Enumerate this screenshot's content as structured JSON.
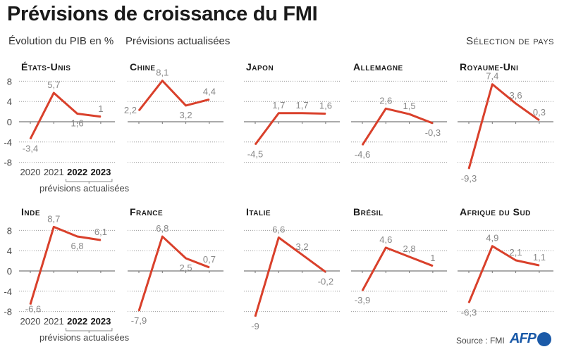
{
  "header": {
    "title": "Prévisions de croissance du FMI",
    "subtitle_left": "Évolution du PIB en %",
    "subtitle_middle": "Prévisions actualisées",
    "selection": "Sélection de pays"
  },
  "footer": {
    "source": "Source : FMI",
    "logo": "AFP"
  },
  "colors": {
    "line": "#d9402b",
    "grid": "#999999",
    "label": "#888888"
  },
  "chart_data": {
    "type": "line",
    "x": [
      "2020",
      "2021",
      "2022",
      "2023"
    ],
    "x_note": "prévisions actualisées",
    "yticks": [
      "8",
      "4",
      "0",
      "-4",
      "-8"
    ],
    "ylim": [
      -8,
      8
    ],
    "grid": true,
    "series": [
      {
        "name": "États-Unis",
        "values": [
          -3.4,
          5.7,
          1.6,
          1
        ],
        "labels": [
          "-3,4",
          "5,7",
          "1,6",
          "1"
        ]
      },
      {
        "name": "Chine",
        "values": [
          2.2,
          8.1,
          3.2,
          4.4
        ],
        "labels": [
          "2,2",
          "8,1",
          "3,2",
          "4,4"
        ]
      },
      {
        "name": "Japon",
        "values": [
          -4.5,
          1.7,
          1.7,
          1.6
        ],
        "labels": [
          "-4,5",
          "1,7",
          "1,7",
          "1,6"
        ]
      },
      {
        "name": "Allemagne",
        "values": [
          -4.6,
          2.6,
          1.5,
          -0.3
        ],
        "labels": [
          "-4,6",
          "2,6",
          "1,5",
          "-0,3"
        ]
      },
      {
        "name": "Royaume-Uni",
        "values": [
          -9.3,
          7.4,
          3.6,
          0.3
        ],
        "labels": [
          "-9,3",
          "7,4",
          "3,6",
          "0,3"
        ]
      },
      {
        "name": "Inde",
        "values": [
          -6.6,
          8.7,
          6.8,
          6.1
        ],
        "labels": [
          "-6,6",
          "8,7",
          "6,8",
          "6,1"
        ]
      },
      {
        "name": "France",
        "values": [
          -7.9,
          6.8,
          2.5,
          0.7
        ],
        "labels": [
          "-7,9",
          "6,8",
          "2,5",
          "0,7"
        ]
      },
      {
        "name": "Italie",
        "values": [
          -9,
          6.6,
          3.2,
          -0.2
        ],
        "labels": [
          "-9",
          "6,6",
          "3,2",
          "-0,2"
        ]
      },
      {
        "name": "Brésil",
        "values": [
          -3.9,
          4.6,
          2.8,
          1
        ],
        "labels": [
          "-3,9",
          "4,6",
          "2,8",
          "1"
        ]
      },
      {
        "name": "Afrique du Sud",
        "values": [
          -6.3,
          4.9,
          2.1,
          1.1
        ],
        "labels": [
          "-6,3",
          "4,9",
          "2,1",
          "1,1"
        ]
      }
    ]
  }
}
